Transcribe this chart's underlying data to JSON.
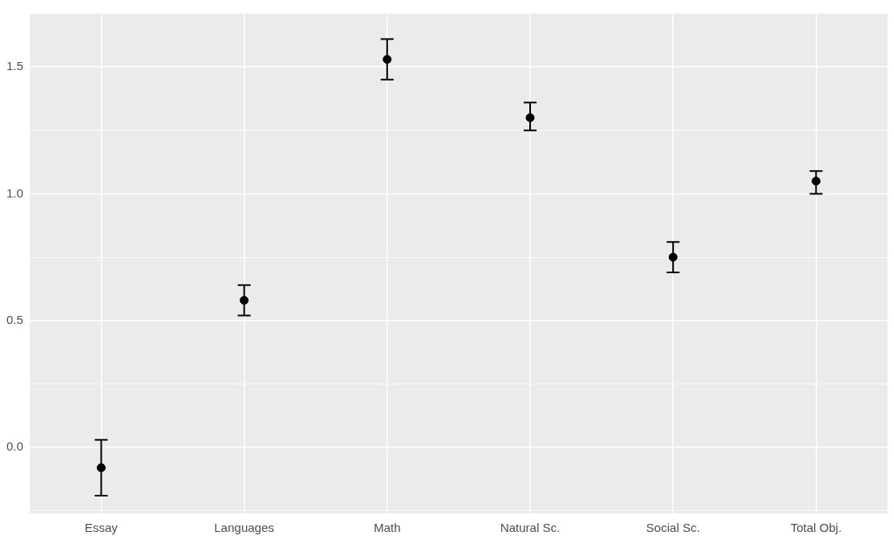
{
  "chart_data": {
    "type": "scatter",
    "categories": [
      "Essay",
      "Languages",
      "Math",
      "Natural Sc.",
      "Social Sc.",
      "Total Obj."
    ],
    "values": [
      -0.08,
      0.58,
      1.53,
      1.3,
      0.75,
      1.05
    ],
    "errors": [
      [
        -0.19,
        0.03
      ],
      [
        0.52,
        0.64
      ],
      [
        1.45,
        1.61
      ],
      [
        1.25,
        1.36
      ],
      [
        0.69,
        0.81
      ],
      [
        1.0,
        1.09
      ]
    ],
    "color": "#000000",
    "marker": "circle",
    "grid": true,
    "ylim": [
      -0.26,
      1.71
    ],
    "yticks": [
      {
        "value": -0.25,
        "label": null
      },
      {
        "value": 0,
        "label": "0.0"
      },
      {
        "value": 0.25,
        "label": null
      },
      {
        "value": 0.5,
        "label": "0.5"
      },
      {
        "value": 0.75,
        "label": null
      },
      {
        "value": 1,
        "label": "1.0"
      },
      {
        "value": 1.25,
        "label": null
      },
      {
        "value": 1.5,
        "label": "1.5"
      }
    ]
  }
}
